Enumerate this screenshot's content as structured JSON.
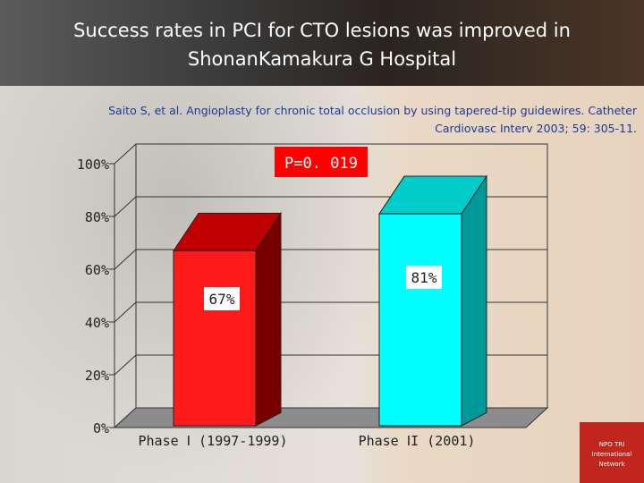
{
  "slide": {
    "title_line1": "Success rates in PCI for CTO lesions was improved in",
    "title_line2": "ShonanKamakura G Hospital",
    "citation_line1": "Saito S, et al. Angioplasty for chronic total occlusion by using tapered-tip guidewires. Catheter",
    "citation_line2": "Cardiovasc Interv 2003; 59: 305-11."
  },
  "logo": {
    "line1": "NPO TRI",
    "line2": "International",
    "line3": "Network",
    "color": "#c0261e"
  },
  "chart_data": {
    "type": "bar",
    "categories": [
      "Phase Ⅰ (1997-1999)",
      "Phase ⅠI (2001)"
    ],
    "values": [
      67,
      81
    ],
    "value_labels": [
      "67%",
      "81%"
    ],
    "ylim": [
      0,
      100
    ],
    "ytick_values": [
      0,
      20,
      40,
      60,
      80,
      100
    ],
    "ytick_labels": [
      "0%",
      "20%",
      "40%",
      "60%",
      "80%",
      "100%"
    ],
    "grid": true,
    "style": "3d",
    "bar_colors": [
      {
        "front": "#ff1a1a",
        "top": "#c00000",
        "side": "#7a0000"
      },
      {
        "front": "#00ffff",
        "top": "#00cccc",
        "side": "#009999"
      }
    ],
    "annotation": "P=0. 019",
    "annotation_color": "#ff0000"
  }
}
